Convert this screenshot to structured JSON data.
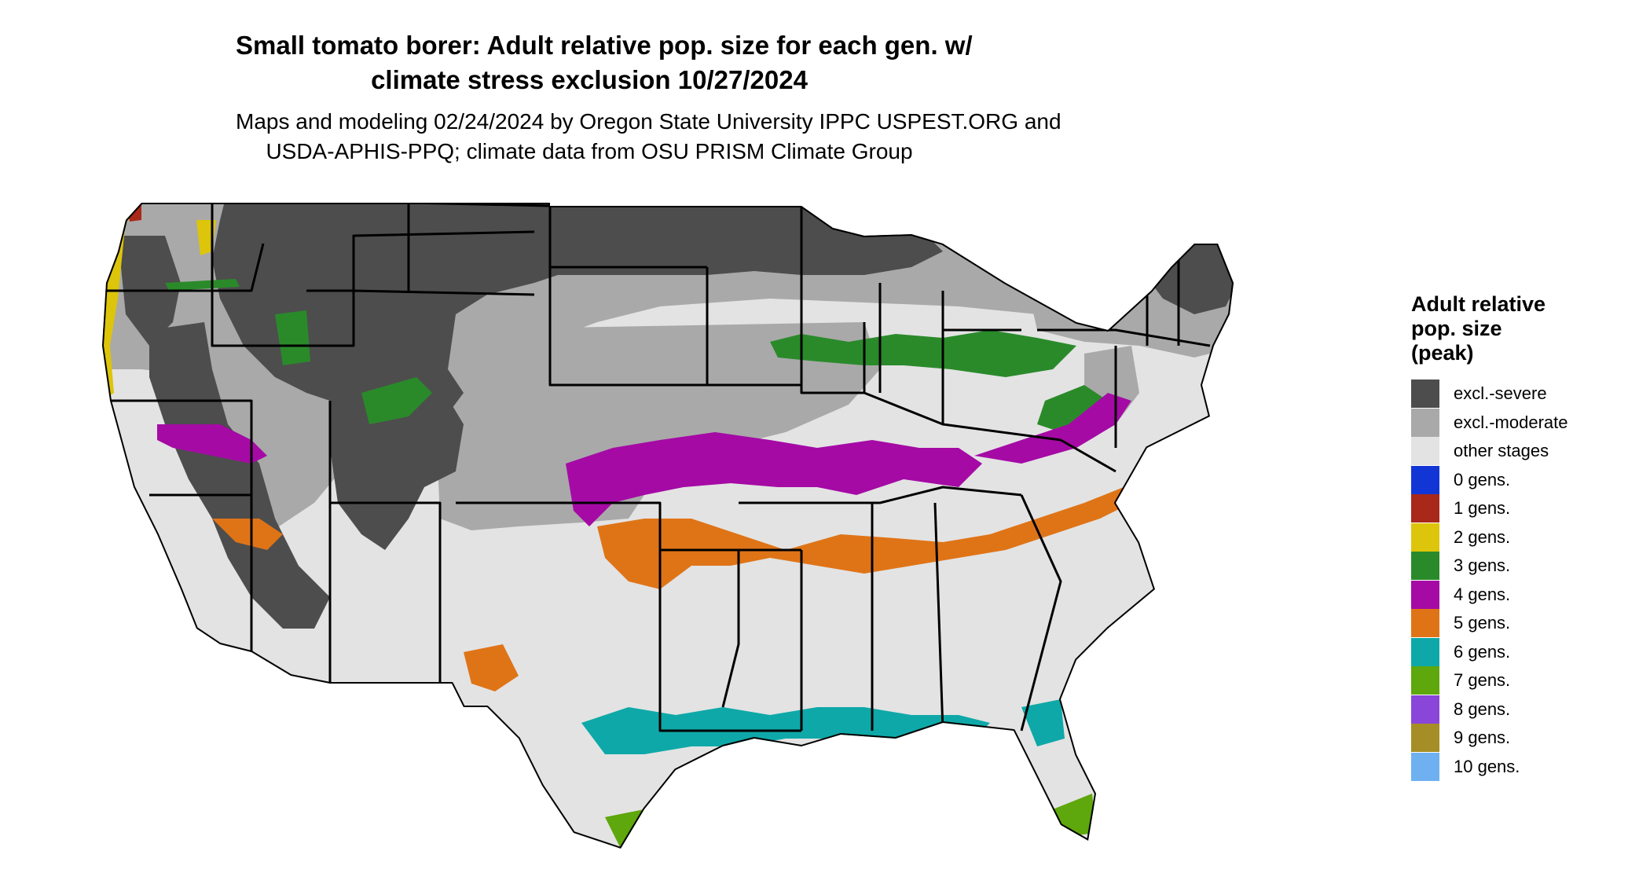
{
  "title": {
    "line1": "Small tomato borer: Adult relative pop. size for each gen. w/",
    "line2": "climate stress exclusion 10/27/2024"
  },
  "subtitle": {
    "line1": "Maps and modeling 02/24/2024 by Oregon State University IPPC USPEST.ORG and",
    "line2": "USDA-APHIS-PPQ; climate data from OSU PRISM Climate Group"
  },
  "legend": {
    "title_line1": "Adult relative",
    "title_line2": "pop. size",
    "title_line3": "(peak)",
    "items": [
      {
        "label": "excl.-severe",
        "color": "#4d4d4d"
      },
      {
        "label": "excl.-moderate",
        "color": "#a9a9a9"
      },
      {
        "label": "other stages",
        "color": "#e3e3e3"
      },
      {
        "label": "0 gens.",
        "color": "#1236d6"
      },
      {
        "label": "1 gens.",
        "color": "#a8281a"
      },
      {
        "label": "2 gens.",
        "color": "#dcc50a"
      },
      {
        "label": "3 gens.",
        "color": "#2a8a2a"
      },
      {
        "label": "4 gens.",
        "color": "#a50aa5"
      },
      {
        "label": "5 gens.",
        "color": "#df7417"
      },
      {
        "label": "6 gens.",
        "color": "#0fa8a8"
      },
      {
        "label": "7 gens.",
        "color": "#5ea70c"
      },
      {
        "label": "8 gens.",
        "color": "#8a45d9"
      },
      {
        "label": "9 gens.",
        "color": "#a68e26"
      },
      {
        "label": "10 gens.",
        "color": "#6fb1f0"
      }
    ]
  }
}
